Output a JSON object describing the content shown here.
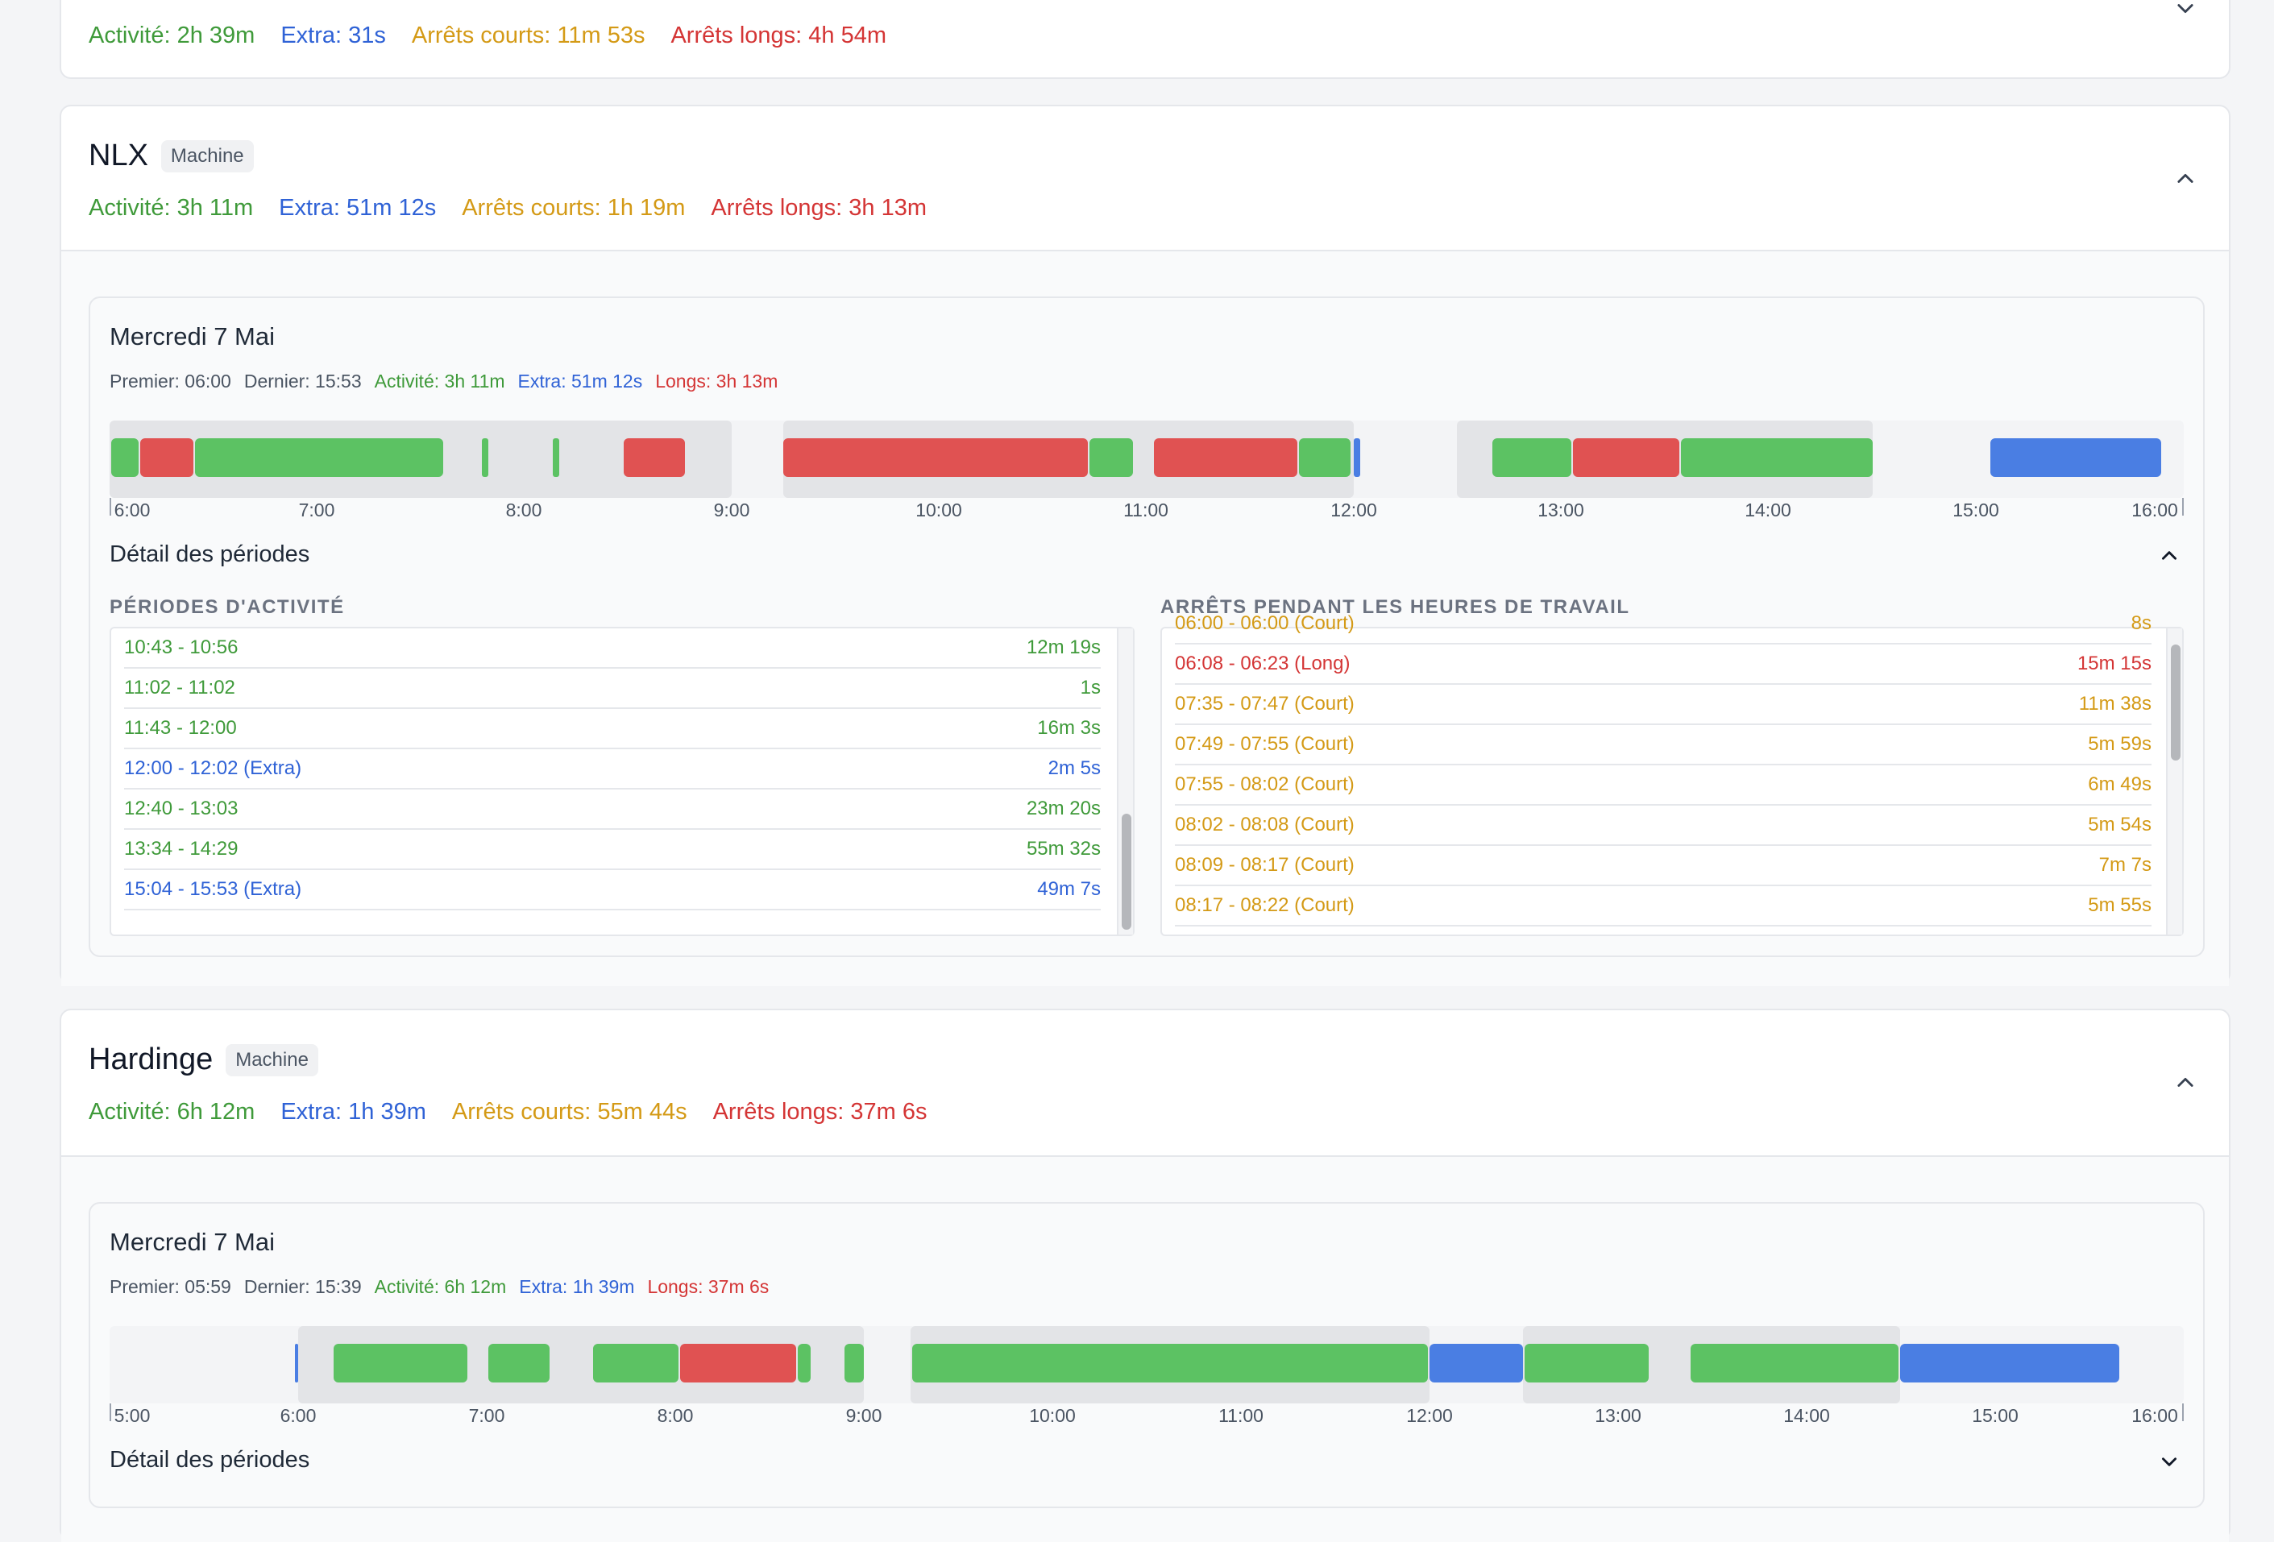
{
  "top_card": {
    "stats": {
      "activity": "Activité: 2h 39m",
      "extra": "Extra: 31s",
      "short_stops": "Arrêts courts: 11m 53s",
      "long_stops": "Arrêts longs: 4h 54m"
    }
  },
  "nlx": {
    "title": "NLX",
    "badge": "Machine",
    "stats": {
      "activity": "Activité: 3h 11m",
      "extra": "Extra: 51m 12s",
      "short_stops": "Arrêts courts: 1h 19m",
      "long_stops": "Arrêts longs: 3h 13m"
    },
    "day": {
      "title": "Mercredi 7 Mai",
      "first": "Premier: 06:00",
      "last": "Dernier: 15:53",
      "activity": "Activité: 3h 11m",
      "extra": "Extra: 51m 12s",
      "longs": "Longs: 3h 13m",
      "ticks": [
        "6:00",
        "7:00",
        "8:00",
        "9:00",
        "10:00",
        "11:00",
        "12:00",
        "13:00",
        "14:00",
        "15:00",
        "16:00"
      ],
      "detail_title": "Détail des périodes",
      "activity_col_title": "PÉRIODES D'ACTIVITÉ",
      "stops_col_title": "ARRÊTS PENDANT LES HEURES DE TRAVAIL",
      "activity_rows": [
        {
          "range": "10:43 - 10:56",
          "dur": "12m 19s",
          "kind": "green"
        },
        {
          "range": "11:02 - 11:02",
          "dur": "1s",
          "kind": "green"
        },
        {
          "range": "11:43 - 12:00",
          "dur": "16m 3s",
          "kind": "green"
        },
        {
          "range": "12:00 - 12:02 (Extra)",
          "dur": "2m 5s",
          "kind": "blue"
        },
        {
          "range": "12:40 - 13:03",
          "dur": "23m 20s",
          "kind": "green"
        },
        {
          "range": "13:34 - 14:29",
          "dur": "55m 32s",
          "kind": "green"
        },
        {
          "range": "15:04 - 15:53 (Extra)",
          "dur": "49m 7s",
          "kind": "blue"
        }
      ],
      "stop_rows": [
        {
          "range": "06:00 - 06:00 (Court)",
          "dur": "8s",
          "kind": "yellow"
        },
        {
          "range": "06:08 - 06:23 (Long)",
          "dur": "15m 15s",
          "kind": "red"
        },
        {
          "range": "07:35 - 07:47 (Court)",
          "dur": "11m 38s",
          "kind": "yellow"
        },
        {
          "range": "07:49 - 07:55 (Court)",
          "dur": "5m 59s",
          "kind": "yellow"
        },
        {
          "range": "07:55 - 08:02 (Court)",
          "dur": "6m 49s",
          "kind": "yellow"
        },
        {
          "range": "08:02 - 08:08 (Court)",
          "dur": "5m 54s",
          "kind": "yellow"
        },
        {
          "range": "08:09 - 08:17 (Court)",
          "dur": "7m 7s",
          "kind": "yellow"
        },
        {
          "range": "08:17 - 08:22 (Court)",
          "dur": "5m 55s",
          "kind": "yellow"
        }
      ]
    }
  },
  "hardinge": {
    "title": "Hardinge",
    "badge": "Machine",
    "stats": {
      "activity": "Activité: 6h 12m",
      "extra": "Extra: 1h 39m",
      "short_stops": "Arrêts courts: 55m 44s",
      "long_stops": "Arrêts longs: 37m 6s"
    },
    "day": {
      "title": "Mercredi 7 Mai",
      "first": "Premier: 05:59",
      "last": "Dernier: 15:39",
      "activity": "Activité: 6h 12m",
      "extra": "Extra: 1h 39m",
      "longs": "Longs: 37m 6s",
      "ticks": [
        "5:00",
        "6:00",
        "7:00",
        "8:00",
        "9:00",
        "10:00",
        "11:00",
        "12:00",
        "13:00",
        "14:00",
        "15:00",
        "16:00"
      ],
      "detail_title": "Détail des périodes"
    }
  },
  "colors": {
    "activity": "#3f9a3a",
    "extra": "#2f62d6",
    "short": "#d49a16",
    "long": "#d43535"
  }
}
